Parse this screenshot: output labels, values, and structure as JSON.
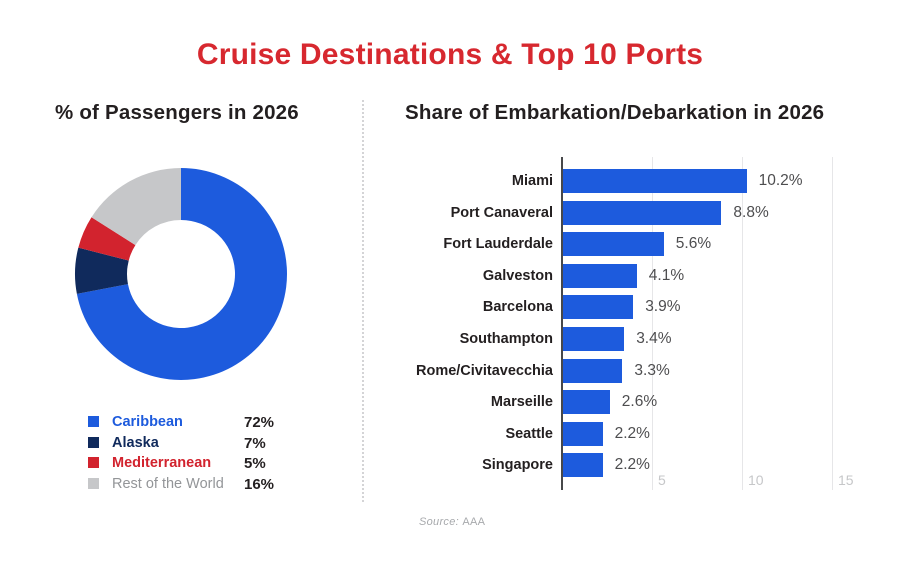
{
  "page": {
    "title": "Cruise Destinations & Top 10 Ports",
    "title_color": "#d7282f",
    "source_prefix": "Source:",
    "source_value": "AAA"
  },
  "colors": {
    "bar_blue": "#1d5bdd",
    "grid": "#e6e6e8",
    "axis": "#47484a",
    "tick_label": "#c6c7c9",
    "dark_text": "#231f20"
  },
  "chart_data": [
    {
      "type": "pie",
      "style": "donut",
      "title": "% of Passengers in 2026",
      "start_angle_deg": 0,
      "direction": "clockwise",
      "segments": [
        {
          "label": "Caribbean",
          "value": 72,
          "display": "72%",
          "color": "#1d5bdd",
          "label_color": "#1d5bdd"
        },
        {
          "label": "Alaska",
          "value": 7,
          "display": "7%",
          "color": "#102a5c",
          "label_color": "#102a5c"
        },
        {
          "label": "Mediterranean",
          "value": 5,
          "display": "5%",
          "color": "#d2232e",
          "label_color": "#d2232e"
        },
        {
          "label": "Rest of the World",
          "value": 16,
          "display": "16%",
          "color": "#c6c7c9",
          "label_color": "#939598"
        }
      ],
      "legend_position": "below-left"
    },
    {
      "type": "bar",
      "orientation": "horizontal",
      "title": "Share of Embarkation/Debarkation in 2026",
      "categories": [
        "Miami",
        "Port Canaveral",
        "Fort Lauderdale",
        "Galveston",
        "Barcelona",
        "Southampton",
        "Rome/Civitavecchia",
        "Marseille",
        "Seattle",
        "Singapore"
      ],
      "values": [
        10.2,
        8.8,
        5.6,
        4.1,
        3.9,
        3.4,
        3.3,
        2.6,
        2.2,
        2.2
      ],
      "value_labels": [
        "10.2%",
        "8.8%",
        "5.6%",
        "4.1%",
        "3.9%",
        "3.4%",
        "3.3%",
        "2.6%",
        "2.2%",
        "2.2%"
      ],
      "xticks": [
        "5",
        "10",
        "15"
      ],
      "xtick_values": [
        5,
        10,
        15
      ],
      "xlim": [
        0,
        15.5
      ],
      "grid": true,
      "bar_color": "#1d5bdd"
    }
  ]
}
